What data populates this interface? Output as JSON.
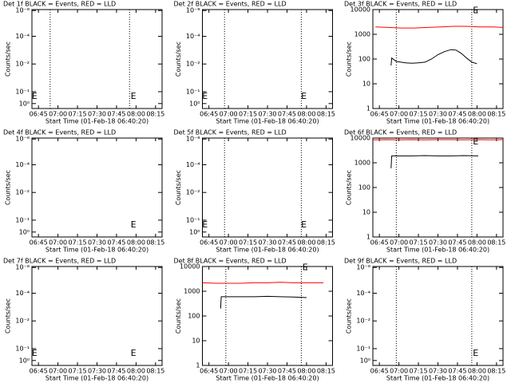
{
  "chart_data": [
    {
      "type": "line",
      "title": "Det 1f BLACK = Events, RED = LLD",
      "ylabel": "Counts/sec",
      "xlabel": "Start Time (01-Feb-18 06:40:20)",
      "log": false,
      "xlim": [
        400,
        500
      ],
      "xticks": [
        {
          "value": 405,
          "label": "06:45"
        },
        {
          "value": 420,
          "label": "07:00"
        },
        {
          "value": 435,
          "label": "07:15"
        },
        {
          "value": 450,
          "label": "07:30"
        },
        {
          "value": 465,
          "label": "07:45"
        },
        {
          "value": 480,
          "label": "08:00"
        },
        {
          "value": 495,
          "label": "08:15"
        }
      ],
      "ylim": [
        0,
        1
      ],
      "yticks": [
        {
          "value": 0.05,
          "label": "10⁰"
        },
        {
          "value": 0.17,
          "label": "10⁻¹"
        },
        {
          "value": 0.45,
          "label": "10⁻²"
        },
        {
          "value": 0.73,
          "label": "10⁻⁴"
        },
        {
          "value": 0.99,
          "label": "10⁻⁸"
        }
      ],
      "vlines": [
        414,
        475
      ],
      "annotations": [
        {
          "text": "E",
          "x": 402,
          "y": 0.12
        },
        {
          "text": "E",
          "x": 478,
          "y": 0.12
        }
      ],
      "series": []
    },
    {
      "type": "line",
      "title": "Det 2f BLACK = Events, RED = LLD",
      "ylabel": "Counts/sec",
      "xlabel": "Start Time (01-Feb-18 06:40:20)",
      "log": false,
      "xlim": [
        400,
        500
      ],
      "xticks": [
        {
          "value": 405,
          "label": "06:45"
        },
        {
          "value": 420,
          "label": "07:00"
        },
        {
          "value": 435,
          "label": "07:15"
        },
        {
          "value": 450,
          "label": "07:30"
        },
        {
          "value": 465,
          "label": "07:45"
        },
        {
          "value": 480,
          "label": "08:00"
        },
        {
          "value": 495,
          "label": "08:15"
        }
      ],
      "ylim": [
        0,
        1
      ],
      "yticks": [
        {
          "value": 0.05,
          "label": "10⁰"
        },
        {
          "value": 0.17,
          "label": "10⁻¹"
        },
        {
          "value": 0.45,
          "label": "10⁻²"
        },
        {
          "value": 0.73,
          "label": "10⁻⁴"
        },
        {
          "value": 0.99,
          "label": "10⁻⁸"
        }
      ],
      "vlines": [
        417,
        476
      ],
      "annotations": [
        {
          "text": "E",
          "x": 402,
          "y": 0.12
        },
        {
          "text": "E",
          "x": 478,
          "y": 0.12
        }
      ],
      "series": []
    },
    {
      "type": "line",
      "title": "Det 3f BLACK = Events, RED = LLD",
      "ylabel": "Counts/sec",
      "xlabel": "Start Time (01-Feb-18 06:40:20)",
      "log": true,
      "xlim": [
        400,
        500
      ],
      "xticks": [
        {
          "value": 405,
          "label": "06:45"
        },
        {
          "value": 420,
          "label": "07:00"
        },
        {
          "value": 435,
          "label": "07:15"
        },
        {
          "value": 450,
          "label": "07:30"
        },
        {
          "value": 465,
          "label": "07:45"
        },
        {
          "value": 480,
          "label": "08:00"
        },
        {
          "value": 495,
          "label": "08:15"
        }
      ],
      "ylim": [
        1,
        10000
      ],
      "yticks": [
        1,
        10,
        100,
        1000,
        10000
      ],
      "vlines": [
        418,
        476
      ],
      "annotations": [
        {
          "text": "E",
          "x": 479,
          "y": 9000
        }
      ],
      "series": [
        {
          "color": "#ff0000",
          "x": [
            402,
            412,
            422,
            432,
            442,
            452,
            462,
            472,
            482,
            492,
            500
          ],
          "values": [
            2000,
            1900,
            1800,
            1800,
            1900,
            2000,
            2100,
            2100,
            2000,
            2000,
            1900
          ]
        },
        {
          "color": "#000000",
          "x": [
            414,
            414.5,
            418,
            425,
            430,
            435,
            440,
            445,
            450,
            455,
            460,
            464,
            468,
            472,
            476,
            480
          ],
          "values": [
            55,
            110,
            80,
            70,
            68,
            70,
            75,
            100,
            150,
            200,
            240,
            230,
            170,
            110,
            75,
            65
          ]
        }
      ]
    },
    {
      "type": "line",
      "title": "Det 4f BLACK = Events, RED = LLD",
      "ylabel": "Counts/sec",
      "xlabel": "Start Time (01-Feb-18 06:40:20)",
      "log": false,
      "xlim": [
        400,
        500
      ],
      "xticks": [
        {
          "value": 405,
          "label": "06:45"
        },
        {
          "value": 420,
          "label": "07:00"
        },
        {
          "value": 435,
          "label": "07:15"
        },
        {
          "value": 450,
          "label": "07:30"
        },
        {
          "value": 465,
          "label": "07:45"
        },
        {
          "value": 480,
          "label": "08:00"
        },
        {
          "value": 495,
          "label": "08:15"
        }
      ],
      "ylim": [
        0,
        1
      ],
      "yticks": [
        {
          "value": 0.05,
          "label": "10⁰"
        },
        {
          "value": 0.17,
          "label": "10⁻¹"
        },
        {
          "value": 0.45,
          "label": "10⁻²"
        },
        {
          "value": 0.73,
          "label": "10⁻⁴"
        },
        {
          "value": 0.99,
          "label": "10⁻⁸"
        }
      ],
      "vlines": [],
      "annotations": [
        {
          "text": "E",
          "x": 478,
          "y": 0.12
        }
      ],
      "series": []
    },
    {
      "type": "line",
      "title": "Det 5f BLACK = Events, RED = LLD",
      "ylabel": "Counts/sec",
      "xlabel": "Start Time (01-Feb-18 06:40:20)",
      "log": false,
      "xlim": [
        400,
        500
      ],
      "xticks": [
        {
          "value": 405,
          "label": "06:45"
        },
        {
          "value": 420,
          "label": "07:00"
        },
        {
          "value": 435,
          "label": "07:15"
        },
        {
          "value": 450,
          "label": "07:30"
        },
        {
          "value": 465,
          "label": "07:45"
        },
        {
          "value": 480,
          "label": "08:00"
        },
        {
          "value": 495,
          "label": "08:15"
        }
      ],
      "ylim": [
        0,
        1
      ],
      "yticks": [
        {
          "value": 0.05,
          "label": "10⁰"
        },
        {
          "value": 0.17,
          "label": "10⁻¹"
        },
        {
          "value": 0.45,
          "label": "10⁻²"
        },
        {
          "value": 0.73,
          "label": "10⁻⁴"
        },
        {
          "value": 0.99,
          "label": "10⁻⁸"
        }
      ],
      "vlines": [
        417,
        476
      ],
      "annotations": [
        {
          "text": "E",
          "x": 402,
          "y": 0.12
        },
        {
          "text": "E",
          "x": 478,
          "y": 0.12
        }
      ],
      "series": []
    },
    {
      "type": "line",
      "title": "Det 6f BLACK = Events, RED = LLD",
      "ylabel": "Counts/sec",
      "xlabel": "Start Time (01-Feb-18 06:40:20)",
      "log": true,
      "xlim": [
        400,
        500
      ],
      "xticks": [
        {
          "value": 405,
          "label": "06:45"
        },
        {
          "value": 420,
          "label": "07:00"
        },
        {
          "value": 435,
          "label": "07:15"
        },
        {
          "value": 450,
          "label": "07:30"
        },
        {
          "value": 465,
          "label": "07:45"
        },
        {
          "value": 480,
          "label": "08:00"
        },
        {
          "value": 495,
          "label": "08:15"
        }
      ],
      "ylim": [
        1,
        10000
      ],
      "yticks": [
        1,
        10,
        100,
        1000,
        10000
      ],
      "vlines": [
        418,
        476
      ],
      "annotations": [
        {
          "text": "E",
          "x": 479,
          "y": 7000
        }
      ],
      "series": [
        {
          "color": "#ff0000",
          "x": [
            400,
            410,
            420,
            430,
            440,
            450,
            460,
            470,
            480,
            490,
            500
          ],
          "values": [
            8500,
            8600,
            8500,
            8600,
            8500,
            8600,
            8600,
            8500,
            8600,
            8500,
            8600
          ]
        },
        {
          "color": "#000000",
          "x": [
            414,
            414.5,
            420,
            430,
            440,
            450,
            460,
            470,
            481
          ],
          "values": [
            600,
            1900,
            1900,
            1900,
            1950,
            1900,
            1900,
            1950,
            1900
          ]
        }
      ]
    },
    {
      "type": "line",
      "title": "Det 7f BLACK = Events, RED = LLD",
      "ylabel": "Counts/sec",
      "xlabel": "Start Time (01-Feb-18 06:40:20)",
      "log": false,
      "xlim": [
        400,
        500
      ],
      "xticks": [
        {
          "value": 405,
          "label": "06:45"
        },
        {
          "value": 420,
          "label": "07:00"
        },
        {
          "value": 435,
          "label": "07:15"
        },
        {
          "value": 450,
          "label": "07:30"
        },
        {
          "value": 465,
          "label": "07:45"
        },
        {
          "value": 480,
          "label": "08:00"
        },
        {
          "value": 495,
          "label": "08:15"
        }
      ],
      "ylim": [
        0,
        1
      ],
      "yticks": [
        {
          "value": 0.05,
          "label": "10⁰"
        },
        {
          "value": 0.17,
          "label": "10⁻¹"
        },
        {
          "value": 0.45,
          "label": "10⁻²"
        },
        {
          "value": 0.73,
          "label": "10⁻⁴"
        },
        {
          "value": 0.99,
          "label": "10⁻⁸"
        }
      ],
      "vlines": [],
      "annotations": [
        {
          "text": "E",
          "x": 402,
          "y": 0.12
        },
        {
          "text": "E",
          "x": 478,
          "y": 0.12
        }
      ],
      "series": []
    },
    {
      "type": "line",
      "title": "Det 8f BLACK = Events, RED = LLD",
      "ylabel": "Counts/sec",
      "xlabel": "Start Time (01-Feb-18 06:40:20)",
      "log": true,
      "xlim": [
        400,
        500
      ],
      "xticks": [
        {
          "value": 405,
          "label": "06:45"
        },
        {
          "value": 420,
          "label": "07:00"
        },
        {
          "value": 435,
          "label": "07:15"
        },
        {
          "value": 450,
          "label": "07:30"
        },
        {
          "value": 465,
          "label": "07:45"
        },
        {
          "value": 480,
          "label": "08:00"
        },
        {
          "value": 495,
          "label": "08:15"
        }
      ],
      "ylim": [
        1,
        10000
      ],
      "yticks": [
        1,
        10,
        100,
        1000,
        10000
      ],
      "vlines": [
        418,
        476
      ],
      "annotations": [
        {
          "text": "E",
          "x": 479,
          "y": 9000
        }
      ],
      "series": [
        {
          "color": "#ff0000",
          "x": [
            400,
            410,
            420,
            430,
            440,
            450,
            460,
            470,
            480,
            493
          ],
          "values": [
            2200,
            2100,
            2100,
            2100,
            2200,
            2200,
            2300,
            2200,
            2200,
            2200
          ]
        },
        {
          "color": "#000000",
          "x": [
            414,
            414.5,
            420,
            430,
            440,
            450,
            460,
            470,
            480
          ],
          "values": [
            200,
            600,
            600,
            600,
            600,
            620,
            600,
            580,
            550
          ]
        }
      ]
    },
    {
      "type": "line",
      "title": "Det 9f BLACK = Events, RED = LLD",
      "ylabel": "Counts/sec",
      "xlabel": "Start Time (01-Feb-18 06:40:20)",
      "log": false,
      "xlim": [
        400,
        500
      ],
      "xticks": [
        {
          "value": 405,
          "label": "06:45"
        },
        {
          "value": 420,
          "label": "07:00"
        },
        {
          "value": 435,
          "label": "07:15"
        },
        {
          "value": 450,
          "label": "07:30"
        },
        {
          "value": 465,
          "label": "07:45"
        },
        {
          "value": 480,
          "label": "08:00"
        },
        {
          "value": 495,
          "label": "08:15"
        }
      ],
      "ylim": [
        0,
        1
      ],
      "yticks": [
        {
          "value": 0.05,
          "label": "10⁰"
        },
        {
          "value": 0.17,
          "label": "10⁻¹"
        },
        {
          "value": 0.45,
          "label": "10⁻²"
        },
        {
          "value": 0.73,
          "label": "10⁻⁴"
        },
        {
          "value": 0.99,
          "label": "10⁻⁸"
        }
      ],
      "vlines": [
        418,
        476
      ],
      "annotations": [
        {
          "text": "E",
          "x": 479,
          "y": 0.12
        }
      ],
      "series": []
    }
  ]
}
